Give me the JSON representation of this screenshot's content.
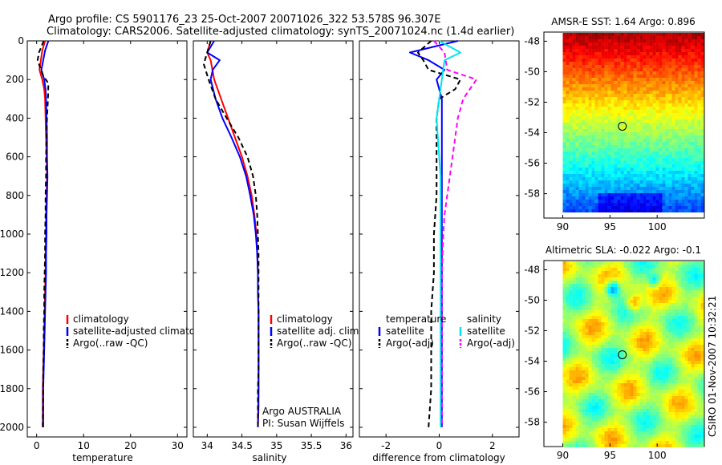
{
  "title_line1": "Argo profile: CS 5901176_23 25-Oct-2007 20071026_322 53.578S 96.307E",
  "title_line2": "Climatology: CARS2006. Satellite-adjusted climatology: synTS_20071024.nc (1.4d earlier)",
  "side_label": "CSIRO 01-Nov-2007 10:32:21",
  "colors": {
    "climatology": "#ff0000",
    "satellite": "#0000ff",
    "argo": "#000000",
    "sal_satellite": "#00e5ee",
    "sal_argo": "#ff00ff",
    "marker": "#000000"
  },
  "chart_data": [
    {
      "type": "line",
      "xlabel": "temperature",
      "ylim": [
        2050,
        0
      ],
      "xlim": [
        -2,
        32
      ],
      "xticks": [
        0,
        10,
        20,
        30
      ],
      "yticks": [
        0,
        200,
        400,
        600,
        800,
        1000,
        1200,
        1400,
        1600,
        1800,
        2000
      ],
      "legend": [
        "climatology",
        "satellite-adjusted climatology",
        "Argo(..raw -QC)"
      ],
      "series": [
        {
          "name": "climatology",
          "style": "solid",
          "color": "#ff0000",
          "x": [
            1.8,
            1.2,
            0.6,
            1.2,
            1.6,
            1.8,
            1.9,
            2.0,
            2.1,
            2.2,
            2.1,
            2.0,
            2.0,
            1.9,
            1.9,
            1.8,
            1.7,
            1.6,
            1.5,
            1.4,
            1.3,
            1.3
          ],
          "y": [
            0,
            50,
            150,
            200,
            250,
            300,
            400,
            500,
            600,
            700,
            800,
            900,
            1000,
            1100,
            1200,
            1300,
            1400,
            1500,
            1600,
            1700,
            1800,
            2000
          ]
        },
        {
          "name": "satellite-adjusted climatology",
          "style": "solid",
          "color": "#0000ff",
          "x": [
            2.5,
            1.8,
            1.0,
            1.6,
            1.9,
            2.0,
            2.1,
            2.2,
            2.2,
            2.3,
            2.2,
            2.1,
            2.1,
            2.0,
            2.0,
            1.9,
            1.8,
            1.7,
            1.6,
            1.5,
            1.4,
            1.4
          ],
          "y": [
            0,
            50,
            150,
            200,
            250,
            300,
            400,
            500,
            600,
            700,
            800,
            900,
            1000,
            1100,
            1200,
            1300,
            1400,
            1500,
            1600,
            1700,
            1800,
            2000
          ]
        },
        {
          "name": "Argo(..raw -QC)",
          "style": "dashed",
          "color": "#000000",
          "x": [
            1.5,
            0.5,
            0.2,
            0.9,
            1.4,
            2.5,
            2.4,
            2.2,
            2.1,
            2.0,
            2.0,
            1.9,
            1.9,
            1.8,
            1.8,
            1.7,
            1.6,
            1.6,
            1.5,
            1.5,
            1.4,
            1.4,
            1.3
          ],
          "y": [
            0,
            60,
            100,
            150,
            180,
            220,
            300,
            400,
            500,
            600,
            700,
            800,
            900,
            1000,
            1100,
            1200,
            1300,
            1400,
            1500,
            1600,
            1700,
            1800,
            2000
          ]
        }
      ]
    },
    {
      "type": "line",
      "xlabel": "salinity",
      "ylim": [
        2050,
        0
      ],
      "xlim": [
        33.8,
        36.1
      ],
      "xticks": [
        34,
        34.5,
        35,
        35.5,
        36
      ],
      "legend": [
        "climatology",
        "satellite adj. clim.",
        "Argo(..raw -QC)"
      ],
      "annotations": [
        "Argo AUSTRALIA",
        "PI: Susan Wijffels"
      ],
      "series": [
        {
          "name": "climatology",
          "style": "solid",
          "color": "#ff0000",
          "x": [
            34.05,
            34.0,
            34.05,
            34.1,
            34.2,
            34.3,
            34.4,
            34.5,
            34.58,
            34.64,
            34.68,
            34.71,
            34.72,
            34.73,
            34.73,
            34.74,
            34.74,
            34.74,
            34.74,
            34.74,
            34.74,
            34.73
          ],
          "y": [
            0,
            60,
            100,
            200,
            300,
            400,
            500,
            600,
            700,
            800,
            900,
            1000,
            1100,
            1200,
            1300,
            1400,
            1500,
            1600,
            1700,
            1800,
            1900,
            2000
          ]
        },
        {
          "name": "satellite adj. clim.",
          "style": "solid",
          "color": "#0000ff",
          "x": [
            34.1,
            34.0,
            34.18,
            34.08,
            34.05,
            34.12,
            34.22,
            34.35,
            34.47,
            34.56,
            34.62,
            34.67,
            34.7,
            34.72,
            34.73,
            34.73,
            34.74,
            34.74,
            34.74,
            34.74,
            34.74,
            34.73
          ],
          "y": [
            0,
            60,
            100,
            150,
            200,
            300,
            400,
            500,
            600,
            700,
            800,
            900,
            1000,
            1100,
            1200,
            1300,
            1400,
            1500,
            1600,
            1700,
            1800,
            2000
          ]
        },
        {
          "name": "Argo(..raw -QC)",
          "style": "dashed",
          "color": "#000000",
          "x": [
            34.05,
            34.0,
            33.95,
            34.02,
            34.12,
            34.28,
            34.45,
            34.58,
            34.66,
            34.7,
            34.72,
            34.73,
            34.74,
            34.74,
            34.74,
            34.74,
            34.74,
            34.74,
            34.74,
            34.73,
            34.73
          ],
          "y": [
            0,
            60,
            120,
            200,
            300,
            400,
            500,
            600,
            700,
            800,
            900,
            1000,
            1100,
            1200,
            1300,
            1400,
            1500,
            1600,
            1700,
            1800,
            2000
          ]
        }
      ]
    },
    {
      "type": "line",
      "xlabel": "difference from climatology",
      "ylim": [
        2050,
        0
      ],
      "xlim": [
        -3.0,
        3.0
      ],
      "xticks": [
        -2,
        0,
        2
      ],
      "legend_groups": [
        {
          "title": "temperature",
          "items": [
            "satellite",
            "Argo(-adj)"
          ]
        },
        {
          "title": "salinity",
          "items": [
            "satellite",
            "Argo(-adj)"
          ]
        }
      ],
      "series": [
        {
          "name": "temperature satellite",
          "style": "solid",
          "color": "#0000ff",
          "x": [
            0.7,
            -1.1,
            -0.4,
            0.2,
            -0.1,
            0.1,
            0.1,
            0.1,
            0.1,
            0.1,
            0.1,
            0.1,
            0.1,
            0.1,
            0.1,
            0.1,
            0.1,
            0.1,
            0.1,
            0.1
          ],
          "y": [
            0,
            60,
            100,
            150,
            200,
            300,
            400,
            500,
            600,
            700,
            800,
            900,
            1000,
            1200,
            1400,
            1600,
            1700,
            1800,
            1900,
            2000
          ]
        },
        {
          "name": "temperature Argo(-adj)",
          "style": "dashed",
          "color": "#000000",
          "x": [
            -0.3,
            -0.8,
            -0.6,
            -0.4,
            0.8,
            0.6,
            0.0,
            -0.1,
            -0.1,
            -0.1,
            -0.1,
            -0.1,
            -0.2,
            -0.2,
            -0.3,
            -0.3,
            -0.3,
            -0.3,
            -0.4
          ],
          "y": [
            0,
            60,
            100,
            150,
            200,
            250,
            300,
            400,
            500,
            600,
            700,
            800,
            1000,
            1200,
            1400,
            1600,
            1700,
            1800,
            2000
          ]
        },
        {
          "name": "salinity satellite",
          "style": "solid",
          "color": "#00e5ee",
          "x": [
            0.0,
            0.8,
            0.2,
            0.1,
            0.0,
            -0.1,
            -0.05,
            0.0,
            0.05,
            0.05,
            0.05,
            0.05,
            0.05,
            0.05,
            0.05,
            0.05,
            0.05,
            0.05,
            0.05,
            0.05
          ],
          "y": [
            0,
            60,
            100,
            200,
            300,
            400,
            500,
            600,
            700,
            800,
            900,
            1000,
            1200,
            1400,
            1500,
            1600,
            1700,
            1800,
            1900,
            2000
          ]
        },
        {
          "name": "salinity Argo(-adj)",
          "style": "dashed",
          "color": "#ff00ff",
          "x": [
            -0.2,
            0.2,
            0.3,
            1.4,
            0.9,
            0.7,
            0.6,
            0.5,
            0.4,
            0.3,
            0.2,
            0.15,
            0.1,
            0.1,
            0.1,
            0.1,
            0.1,
            0.1,
            0.1
          ],
          "y": [
            0,
            60,
            150,
            200,
            300,
            400,
            500,
            600,
            700,
            800,
            900,
            1000,
            1200,
            1400,
            1500,
            1600,
            1700,
            1800,
            2000
          ]
        }
      ]
    },
    {
      "type": "heatmap",
      "title": "AMSR-E SST: 1.64  Argo: 0.896",
      "xlim": [
        88,
        105
      ],
      "ylim": [
        -59.6,
        -47.4
      ],
      "xticks": [
        90,
        95,
        100
      ],
      "yticks": [
        -48,
        -50,
        -52,
        -54,
        -56,
        -58
      ],
      "marker": {
        "lon": 96.307,
        "lat": -53.578
      }
    },
    {
      "type": "heatmap",
      "title": "Altimetric SLA: -0.022  Argo: -0.1",
      "xlim": [
        88,
        105
      ],
      "ylim": [
        -59.6,
        -47.4
      ],
      "xticks": [
        90,
        95,
        100
      ],
      "yticks": [
        -48,
        -50,
        -52,
        -54,
        -56,
        -58
      ],
      "marker": {
        "lon": 96.307,
        "lat": -53.578
      }
    }
  ]
}
